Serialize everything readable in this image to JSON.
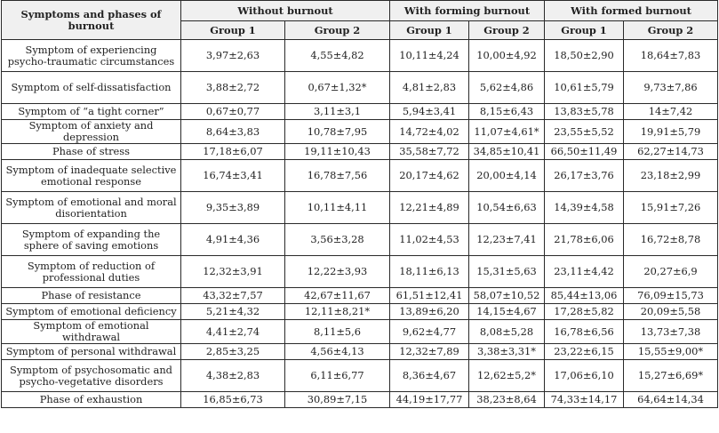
{
  "header": {
    "corner_label": "Symptoms and phases of burnout",
    "groups": [
      "Without burnout",
      "With forming burnout",
      "With formed burnout"
    ],
    "subgroups": [
      "Group 1",
      "Group 2",
      "Group 1",
      "Group 2",
      "Group 1",
      "Group 2"
    ]
  },
  "rows": [
    {
      "label": "Symptom of experiencing psycho-traumatic circumstances",
      "values": [
        "3,97±2,63",
        "4,55±4,82",
        "10,11±4,24",
        "10,00±4,92",
        "18,50±2,90",
        "18,64±7,83"
      ]
    },
    {
      "label": "Symptom of self-dissatisfaction",
      "values": [
        "3,88±2,72",
        "0,67±1,32*",
        "4,81±2,83",
        "5,62±4,86",
        "10,61±5,79",
        "9,73±7,86"
      ]
    },
    {
      "label": "Symptom of “a tight corner”",
      "values": [
        "0,67±0,77",
        "3,11±3,1",
        "5,94±3,41",
        "8,15±6,43",
        "13,83±5,78",
        "14±7,42"
      ]
    },
    {
      "label": "Symptom of anxiety and depression",
      "values": [
        "8,64±3,83",
        "10,78±7,95",
        "14,72±4,02",
        "11,07±4,61*",
        "23,55±5,52",
        "19,91±5,79"
      ]
    },
    {
      "label": "Phase of stress",
      "values": [
        "17,18±6,07",
        "19,11±10,43",
        "35,58±7,72",
        "34,85±10,41",
        "66,50±11,49",
        "62,27±14,73"
      ]
    },
    {
      "label": "Symptom of inadequate selective emotional response",
      "values": [
        "16,74±3,41",
        "16,78±7,56",
        "20,17±4,62",
        "20,00±4,14",
        "26,17±3,76",
        "23,18±2,99"
      ]
    },
    {
      "label": "Symptom of emotional and moral disorientation",
      "values": [
        "9,35±3,89",
        "10,11±4,11",
        "12,21±4,89",
        "10,54±6,63",
        "14,39±4,58",
        "15,91±7,26"
      ]
    },
    {
      "label": "Symptom of expanding the sphere of saving emotions",
      "values": [
        "4,91±4,36",
        "3,56±3,28",
        "11,02±4,53",
        "12,23±7,41",
        "21,78±6,06",
        "16,72±8,78"
      ]
    },
    {
      "label": "Symptom of reduction of professional duties",
      "values": [
        "12,32±3,91",
        "12,22±3,93",
        "18,11±6,13",
        "15,31±5,63",
        "23,11±4,42",
        "20,27±6,9"
      ]
    },
    {
      "label": "Phase of resistance",
      "values": [
        "43,32±7,57",
        "42,67±11,67",
        "61,51±12,41",
        "58,07±10,52",
        "85,44±13,06",
        "76,09±15,73"
      ]
    },
    {
      "label": "Symptom of emotional deficiency",
      "values": [
        "5,21±4,32",
        "12,11±8,21*",
        "13,89±6,20",
        "14,15±4,67",
        "17,28±5,82",
        "20,09±5,58"
      ]
    },
    {
      "label": "Symptom of emotional withdrawal",
      "values": [
        "4,41±2,74",
        "8,11±5,6",
        "9,62±4,77",
        "8,08±5,28",
        "16,78±6,56",
        "13,73±7,38"
      ]
    },
    {
      "label": "Symptom of personal withdrawal",
      "values": [
        "2,85±3,25",
        "4,56±4,13",
        "12,32±7,89",
        "3,38±3,31*",
        "23,22±6,15",
        "15,55±9,00*"
      ]
    },
    {
      "label": "Symptom of psychosomatic and psycho-vegetative disorders",
      "values": [
        "4,38±2,83",
        "6,11±6,77",
        "8,36±4,67",
        "12,62±5,2*",
        "17,06±6,10",
        "15,27±6,69*"
      ]
    },
    {
      "label": "Phase of exhaustion",
      "values": [
        "16,85±6,73",
        "30,89±7,15",
        "44,19±17,77",
        "38,23±8,64",
        "74,33±14,17",
        "64,64±14,34"
      ]
    }
  ]
}
